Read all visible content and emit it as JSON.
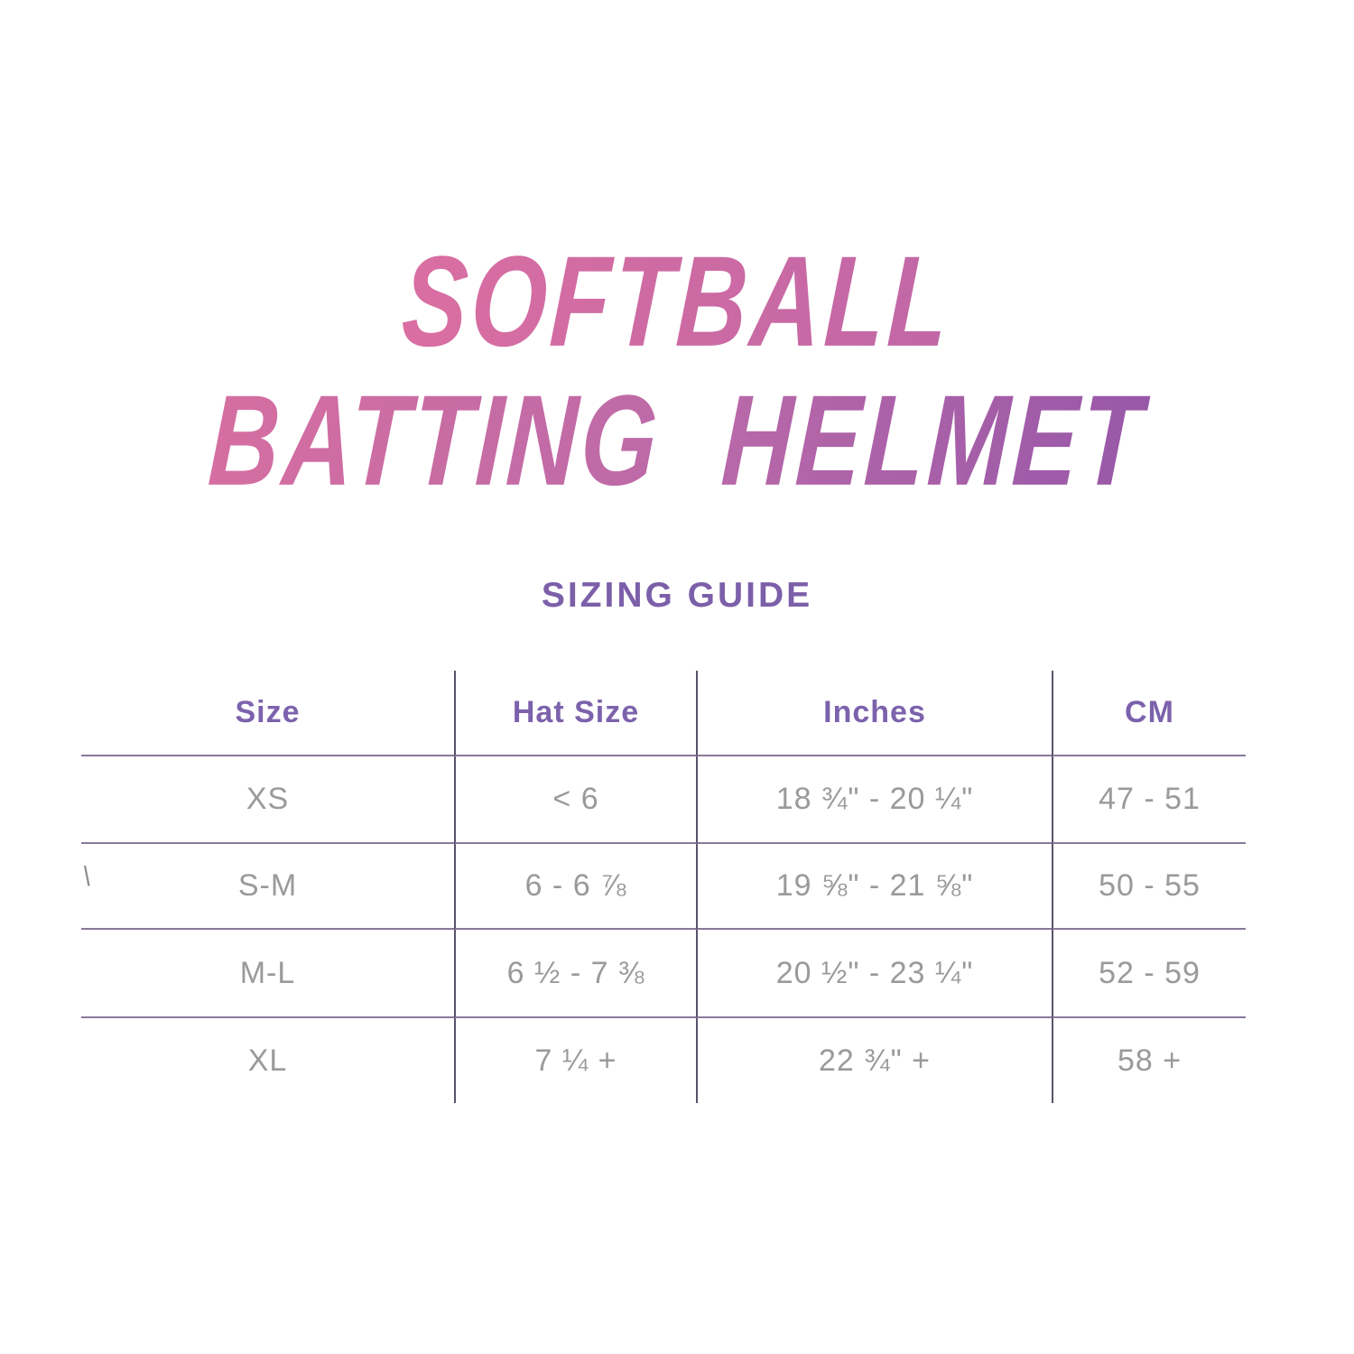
{
  "title": {
    "line1": "SOFTBALL",
    "line2": "BATTING HELMET"
  },
  "subtitle": "SIZING GUIDE",
  "table": {
    "headers": [
      "Size",
      "Hat Size",
      "Inches",
      "CM"
    ],
    "rows": [
      [
        "XS",
        "< 6",
        "18 ¾\" - 20 ¼\"",
        "47 - 51"
      ],
      [
        "S-M",
        "6 - 6 ⅞",
        "19 ⅝\" - 21 ⅝\"",
        "50 - 55"
      ],
      [
        "M-L",
        "6 ½ - 7 ⅜",
        "20 ½\" - 23 ¼\"",
        "52 - 59"
      ],
      [
        "XL",
        "7 ¼ +",
        "22 ¾\" +",
        "58 +"
      ]
    ]
  },
  "stray_mark": "\\",
  "colors": {
    "title_gradient_start": "#e9739f",
    "title_gradient_mid": "#bc6aa8",
    "title_gradient_end": "#8b52a8",
    "subtitle_purple": "#7c5fa9",
    "header_purple": "#7c62ac",
    "body_gray": "#9a9a9a",
    "vertical_line": "#59526b",
    "horizontal_line": "#87799b",
    "background": "#ffffff"
  }
}
